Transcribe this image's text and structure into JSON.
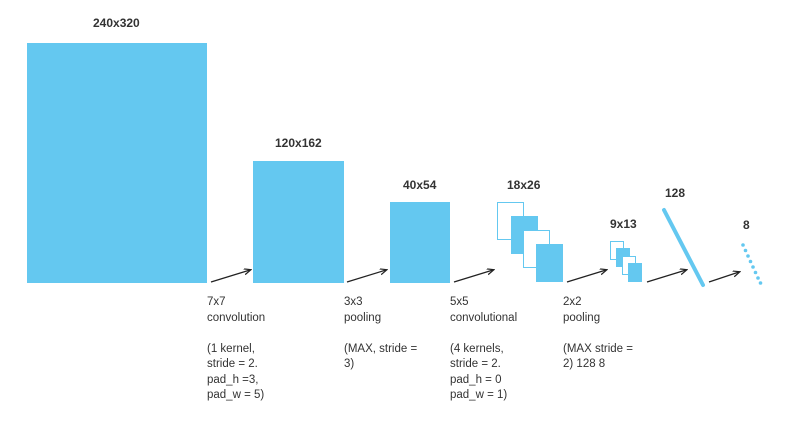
{
  "colors": {
    "accent": "#64c8f0",
    "text": "#333333",
    "arrow": "#222222"
  },
  "layers": {
    "input_label": "240x320",
    "conv1_label": "120x162",
    "pool1_label": "40x54",
    "conv2_label": "18x26",
    "pool2_label": "9x13",
    "fc1_label": "128",
    "fc2_label": "8"
  },
  "operations": {
    "conv1": "7x7\nconvolution\n\n(1 kernel,\nstride = 2.\npad_h =3,\npad_w = 5)",
    "pool1": "3x3\npooling\n\n(MAX, stride =\n3)",
    "conv2": "5x5\nconvolutional\n\n(4 kernels,\nstride = 2.\npad_h = 0\npad_w = 1)",
    "pool2": "2x2\npooling\n\n(MAX stride =\n2) 128 8"
  }
}
